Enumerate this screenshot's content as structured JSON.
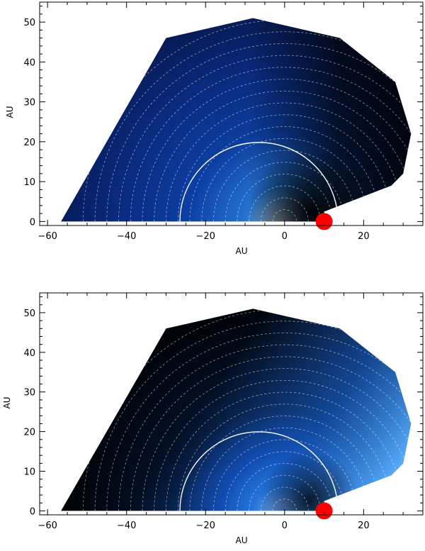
{
  "chart_data": [
    {
      "type": "heatmap",
      "panel": "top",
      "xlabel": "AU",
      "ylabel": "AU",
      "xlim": [
        -62,
        35
      ],
      "ylim": [
        -1,
        55
      ],
      "xticks": [
        -60,
        -40,
        -20,
        0,
        20
      ],
      "yticks": [
        0,
        10,
        20,
        30,
        40,
        50
      ],
      "xtick_labels": [
        "−60",
        "−40",
        "−20",
        "0",
        "20"
      ],
      "ytick_labels": [
        "0",
        "10",
        "20",
        "30",
        "40",
        "50"
      ],
      "colormap": [
        "#ffffff",
        "#1a6fd6",
        "#06163f",
        "#000000"
      ],
      "brightness_direction": "toward source at origin; darkest near planet",
      "contour_spacing_au": 3,
      "contour_count": 17,
      "source": {
        "x": 0,
        "y": 0
      },
      "planet": {
        "x": 10,
        "y": 0,
        "color": "#ff0000"
      },
      "outline_boundary": [
        [
          -56.6,
          0
        ],
        [
          -30,
          46
        ],
        [
          -8,
          51
        ],
        [
          14,
          46
        ],
        [
          28,
          35
        ],
        [
          32,
          22
        ],
        [
          30,
          12
        ],
        [
          27,
          9
        ],
        [
          10,
          2.5
        ],
        [
          10,
          0
        ]
      ],
      "white_arc": {
        "center": [
          -6.5,
          0
        ],
        "radius": 20
      }
    },
    {
      "type": "heatmap",
      "panel": "bottom",
      "xlabel": "AU",
      "ylabel": "AU",
      "xlim": [
        -62,
        35
      ],
      "ylim": [
        -1,
        55
      ],
      "xticks": [
        -60,
        -40,
        -20,
        0,
        20
      ],
      "yticks": [
        0,
        10,
        20,
        30,
        40,
        50
      ],
      "xtick_labels": [
        "−60",
        "−40",
        "−20",
        "0",
        "20"
      ],
      "ytick_labels": [
        "0",
        "10",
        "20",
        "30",
        "40",
        "50"
      ],
      "colormap": [
        "#ffffff",
        "#1a6fd6",
        "#06163f",
        "#000000"
      ],
      "brightness_direction": "toward source at origin; brighter on the right flank",
      "contour_spacing_au": 3,
      "contour_count": 17,
      "source": {
        "x": 0,
        "y": 0
      },
      "planet": {
        "x": 10,
        "y": 0,
        "color": "#ff0000"
      },
      "outline_boundary": [
        [
          -56.6,
          0
        ],
        [
          -30,
          46
        ],
        [
          -8,
          51
        ],
        [
          14,
          46
        ],
        [
          28,
          35
        ],
        [
          32,
          22
        ],
        [
          30,
          12
        ],
        [
          27,
          9
        ],
        [
          10,
          2.5
        ],
        [
          10,
          0
        ]
      ],
      "white_arc": {
        "center": [
          -6.5,
          0
        ],
        "radius": 20
      }
    }
  ]
}
